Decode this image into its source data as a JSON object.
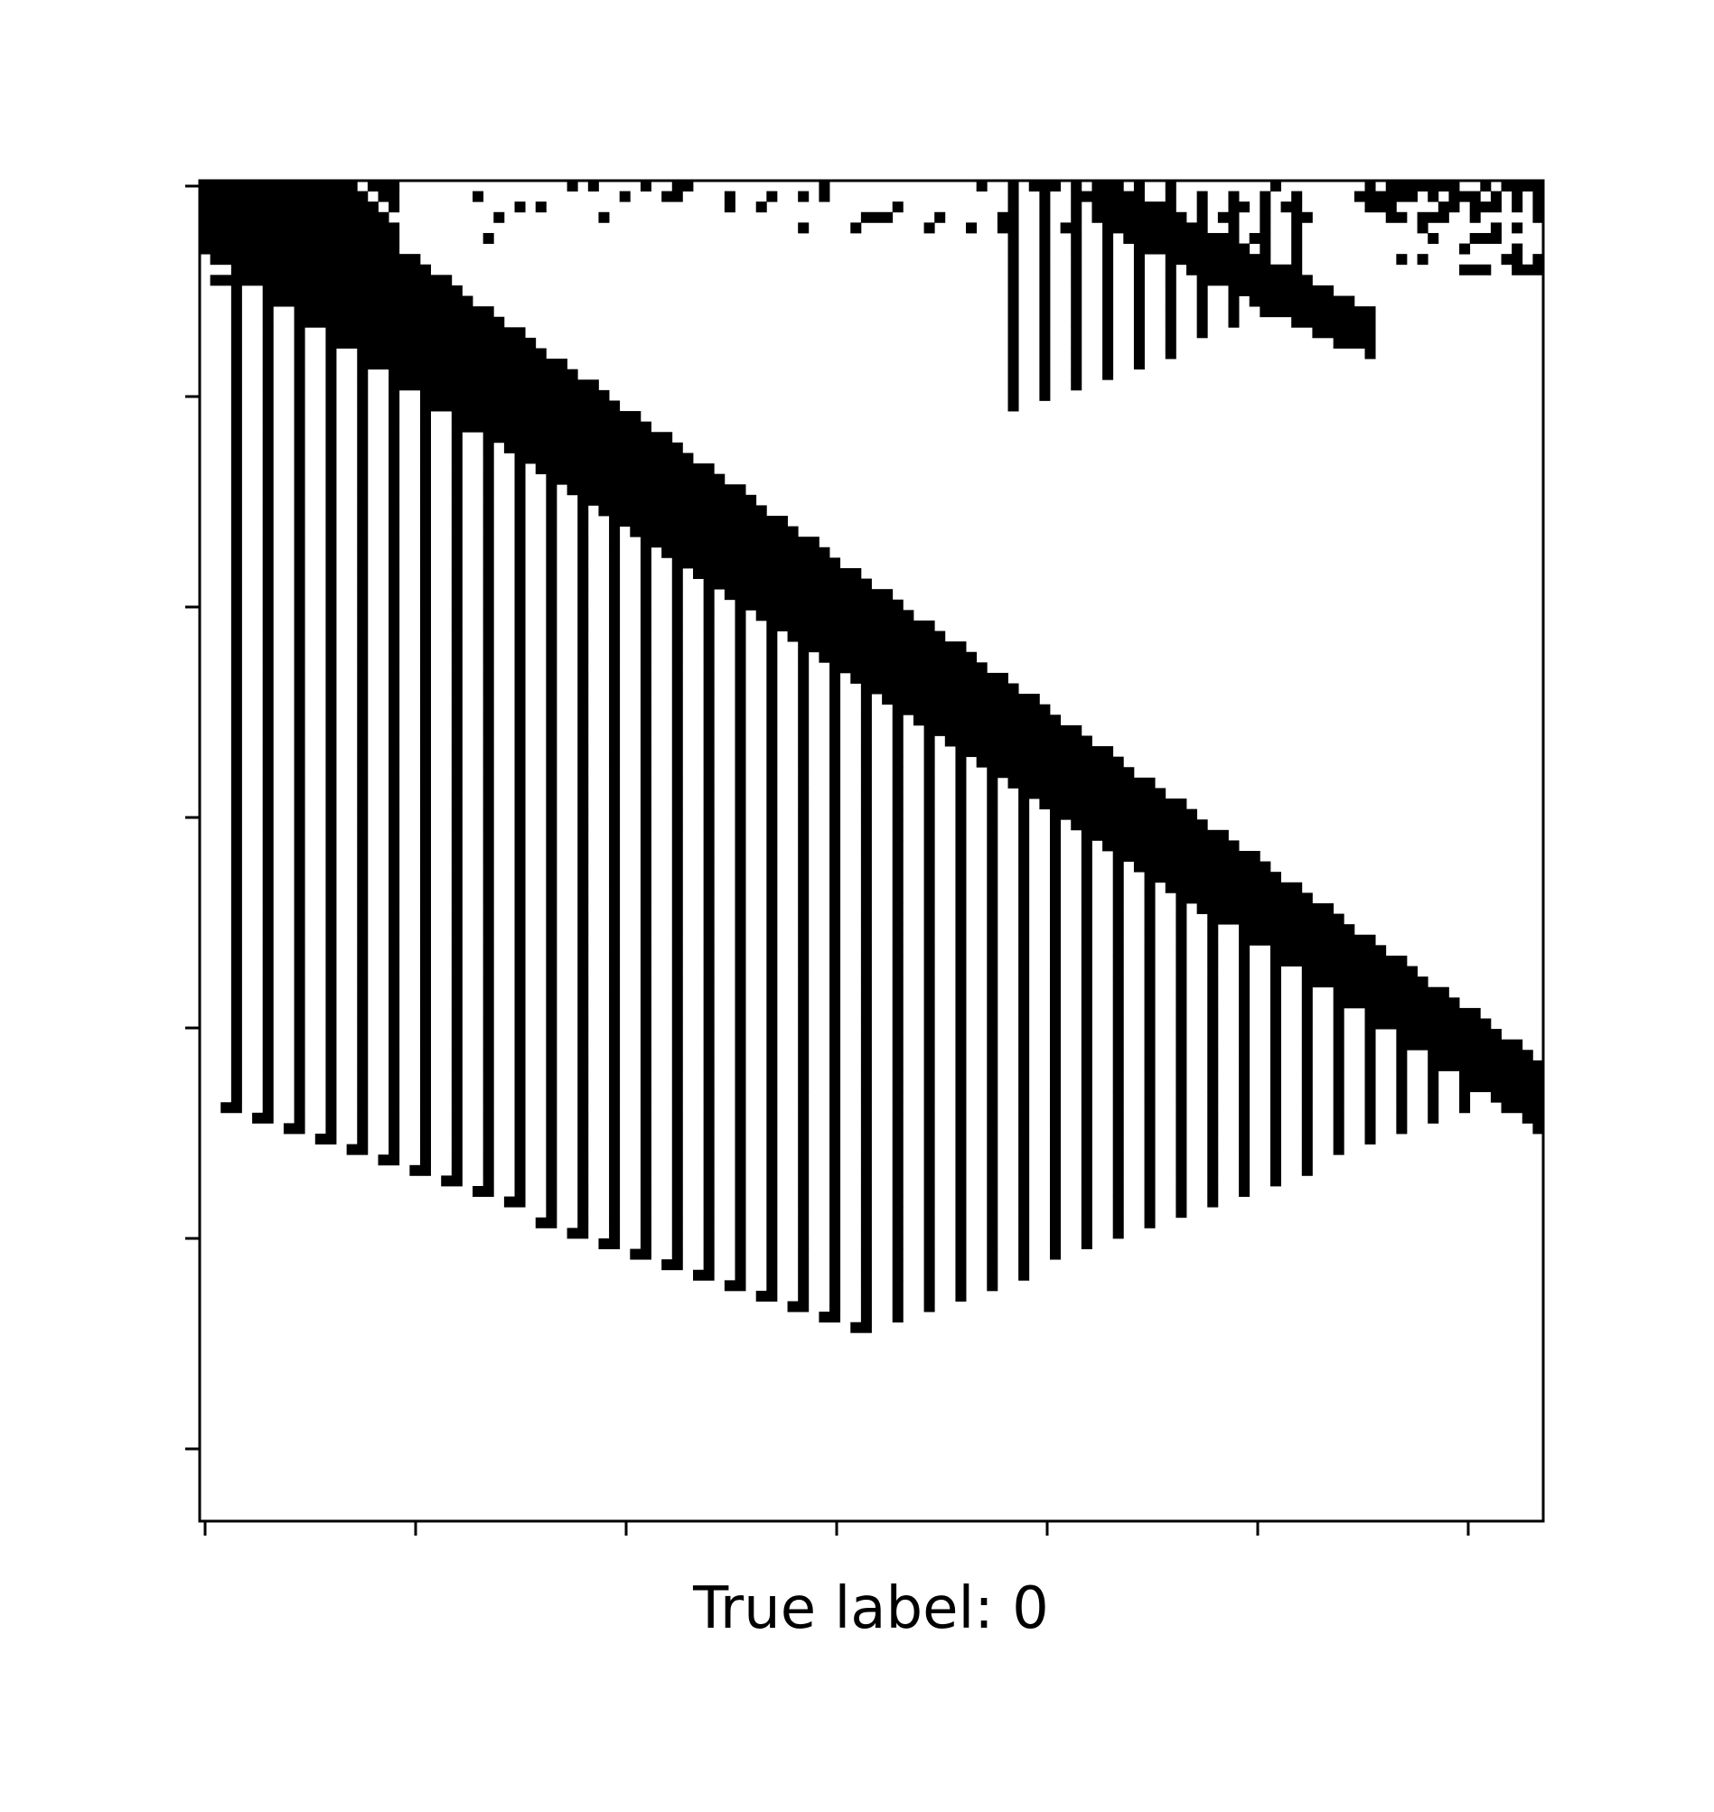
{
  "chart_data": {
    "type": "heatmap",
    "title": "",
    "xlabel": "True label: 0",
    "ylabel": "",
    "colormap": "binary",
    "colors": {
      "on": "#000000",
      "off": "#ffffff",
      "frame": "#000000"
    },
    "grid": false,
    "x_tick_count": 7,
    "y_tick_count": 7,
    "tick_labels_visible": false,
    "legend": "none",
    "features": [
      {
        "name": "main-diagonal-band",
        "from": [
          0,
          0
        ],
        "to": [
          127,
          88
        ]
      },
      {
        "name": "left-vertical-stripes",
        "x_range": [
          2,
          62
        ],
        "y_range": [
          10,
          109
        ]
      },
      {
        "name": "right-vertical-stripes",
        "x_range": [
          62,
          120
        ],
        "y_range": [
          10,
          88
        ]
      },
      {
        "name": "upper-right-vertical-stripes",
        "x_range": [
          77,
          92
        ],
        "y_range": [
          0,
          21
        ]
      },
      {
        "name": "upper-right-diagonal-band",
        "from": [
          85,
          0
        ],
        "to": [
          110,
          12
        ]
      },
      {
        "name": "top-row-noise",
        "x_range": [
          0,
          128
        ],
        "y_range": [
          0,
          6
        ]
      }
    ]
  }
}
